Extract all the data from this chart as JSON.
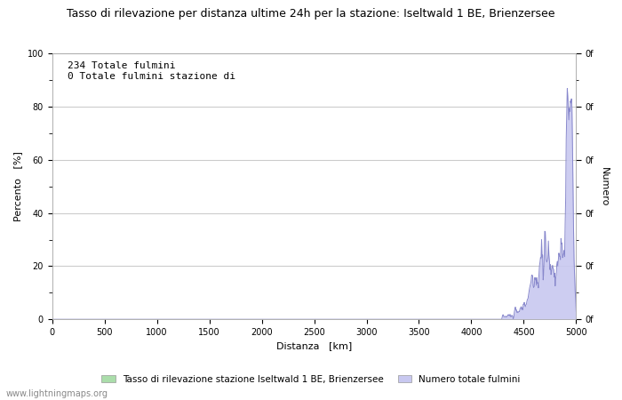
{
  "title": "Tasso di rilevazione per distanza ultime 24h per la stazione: Iseltwald 1 BE, Brienzersee",
  "xlabel": "Distanza   [km]",
  "ylabel_left": "Percento   [%]",
  "ylabel_right": "Numero",
  "xlim": [
    0,
    5000
  ],
  "ylim_left": [
    0,
    100
  ],
  "annotation_lines": [
    "234 Totale fulmini",
    "0 Totale fulmini stazione di"
  ],
  "legend_labels": [
    "Tasso di rilevazione stazione Iseltwald 1 BE, Brienzersee",
    "Numero totale fulmini"
  ],
  "legend_colors": [
    "#aaddaa",
    "#c8c8f0"
  ],
  "xticks": [
    0,
    500,
    1000,
    1500,
    2000,
    2500,
    3000,
    3500,
    4000,
    4500,
    5000
  ],
  "yticks_left": [
    0,
    20,
    40,
    60,
    80,
    100
  ],
  "website": "www.lightningmaps.org",
  "color_green": "#aaddaa",
  "color_blue_fill": "#c8c8f0",
  "color_blue_line": "#8888cc",
  "background_color": "#ffffff",
  "grid_color": "#cccccc",
  "title_fontsize": 9,
  "axis_fontsize": 8,
  "annot_fontsize": 8
}
